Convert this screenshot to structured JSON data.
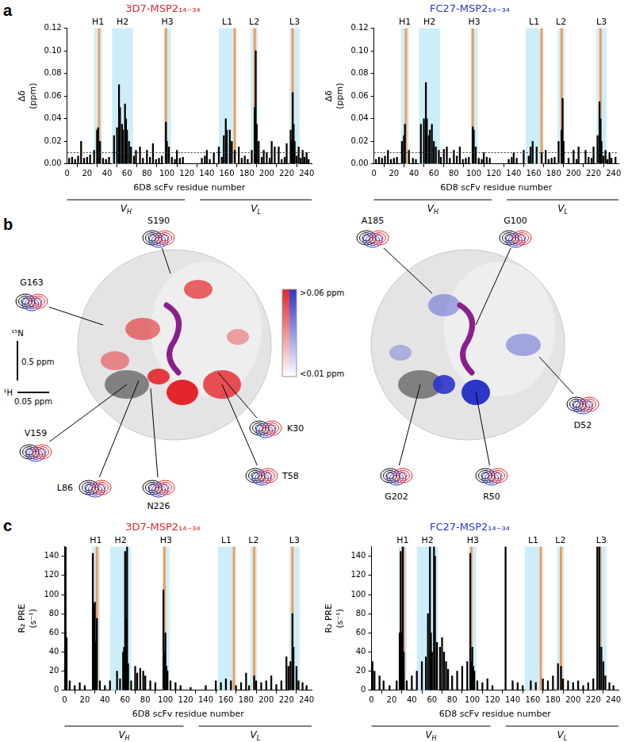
{
  "panel_labels": [
    "a",
    "b",
    "c"
  ],
  "chart_data": [
    {
      "type": "bar",
      "title": "3D7-MSP2₁₄₋₃₄",
      "title_color": "#e3262b",
      "color": "#000000",
      "x_label": "6D8 scFv residue number",
      "y_label": [
        "Δδ",
        "(ppm)"
      ],
      "x": [
        14,
        27,
        30,
        31,
        33,
        47,
        50,
        52,
        53,
        55,
        56,
        58,
        59,
        60,
        62,
        64,
        69,
        73,
        80,
        86,
        99,
        100,
        102,
        110,
        140,
        147,
        152,
        157,
        159,
        160,
        163,
        165,
        168,
        172,
        185,
        188,
        189,
        190,
        192,
        197,
        200,
        205,
        208,
        212,
        220,
        224,
        225,
        226,
        227,
        228,
        232,
        236,
        240,
        2,
        5,
        8,
        11,
        17,
        20,
        23,
        36,
        39,
        42,
        67,
        76,
        83,
        89,
        92,
        95,
        105,
        108,
        113,
        116,
        135,
        138,
        143,
        155,
        175,
        178,
        181,
        195,
        203,
        215,
        218,
        230,
        234,
        238,
        242
      ],
      "values": [
        0.02,
        0.012,
        0.03,
        0.032,
        0.02,
        0.025,
        0.032,
        0.07,
        0.05,
        0.035,
        0.03,
        0.053,
        0.04,
        0.03,
        0.02,
        0.015,
        0.012,
        0.015,
        0.012,
        0.018,
        0.037,
        0.02,
        0.015,
        0.012,
        0.012,
        0.01,
        0.015,
        0.025,
        0.04,
        0.03,
        0.03,
        0.02,
        0.012,
        0.015,
        0.012,
        0.05,
        0.1,
        0.035,
        0.02,
        0.012,
        0.01,
        0.02,
        0.015,
        0.015,
        0.018,
        0.03,
        0.02,
        0.063,
        0.035,
        0.02,
        0.015,
        0.012,
        0.01,
        0.005,
        0.006,
        0.004,
        0.007,
        0.005,
        0.006,
        0.008,
        0.005,
        0.004,
        0.006,
        0.007,
        0.005,
        0.006,
        0.004,
        0.005,
        0.007,
        0.006,
        0.004,
        0.005,
        0.006,
        0.005,
        0.007,
        0.004,
        0.006,
        0.005,
        0.007,
        0.004,
        0.006,
        0.005,
        0.004,
        0.006,
        0.007,
        0.005,
        0.006,
        0.004
      ],
      "xlim": [
        0,
        245
      ],
      "xticks": [
        0,
        20,
        40,
        60,
        80,
        100,
        120,
        140,
        160,
        180,
        200,
        220,
        240
      ],
      "ylim": [
        0,
        0.12
      ],
      "yticks": [
        {
          "value": 0,
          "label": "0.00"
        },
        {
          "value": 0.02,
          "label": "0.02"
        },
        {
          "value": 0.04,
          "label": "0.04"
        },
        {
          "value": 0.06,
          "label": "0.06"
        },
        {
          "value": 0.08,
          "label": "0.08"
        },
        {
          "value": 0.1,
          "label": "0.10"
        },
        {
          "value": 0.12,
          "label": "0.12"
        }
      ],
      "grid": false,
      "threshold": 0.01,
      "cdr_regions": [
        {
          "label": "H1",
          "start": 27,
          "end": 35
        },
        {
          "label": "H2",
          "start": 45,
          "end": 66
        },
        {
          "label": "H3",
          "start": 97,
          "end": 104
        },
        {
          "label": "L1",
          "start": 152,
          "end": 169
        },
        {
          "label": "L2",
          "start": 184,
          "end": 191
        },
        {
          "label": "L3",
          "start": 223,
          "end": 233
        }
      ],
      "highlight_residues": [
        32,
        99,
        168,
        188,
        226
      ],
      "domains": [
        {
          "label": "VH",
          "start": 0,
          "end": 118
        },
        {
          "label": "VL",
          "start": 133,
          "end": 245
        }
      ]
    },
    {
      "type": "bar",
      "title": "FC27-MSP2₁₄₋₃₄",
      "title_color": "#2b35c8",
      "color": "#000000",
      "x_label": "6D8 scFv residue number",
      "y_label": [
        "Δδ",
        "(ppm)"
      ],
      "x": [
        14,
        28,
        30,
        31,
        35,
        47,
        50,
        52,
        53,
        55,
        56,
        58,
        60,
        62,
        65,
        70,
        73,
        80,
        86,
        99,
        100,
        102,
        110,
        140,
        150,
        157,
        159,
        163,
        168,
        172,
        185,
        188,
        189,
        190,
        200,
        205,
        212,
        220,
        224,
        226,
        227,
        228,
        232,
        236,
        2,
        5,
        8,
        11,
        17,
        20,
        23,
        39,
        42,
        67,
        76,
        83,
        89,
        92,
        95,
        105,
        108,
        113,
        116,
        135,
        138,
        143,
        155,
        175,
        178,
        181,
        195,
        203,
        215,
        218,
        230,
        234,
        238,
        242
      ],
      "values": [
        0.012,
        0.02,
        0.025,
        0.035,
        0.012,
        0.035,
        0.04,
        0.072,
        0.04,
        0.025,
        0.03,
        0.035,
        0.02,
        0.015,
        0.012,
        0.013,
        0.015,
        0.012,
        0.015,
        0.033,
        0.03,
        0.015,
        0.01,
        0.01,
        0.012,
        0.015,
        0.02,
        0.015,
        0.01,
        0.012,
        0.02,
        0.03,
        0.058,
        0.02,
        0.012,
        0.015,
        0.012,
        0.015,
        0.025,
        0.055,
        0.04,
        0.02,
        0.012,
        0.01,
        0.004,
        0.006,
        0.005,
        0.007,
        0.004,
        0.005,
        0.006,
        0.005,
        0.004,
        0.006,
        0.005,
        0.007,
        0.004,
        0.005,
        0.006,
        0.005,
        0.004,
        0.006,
        0.005,
        0.004,
        0.006,
        0.005,
        0.007,
        0.004,
        0.005,
        0.006,
        0.005,
        0.004,
        0.006,
        0.005,
        0.007,
        0.004,
        0.005,
        0.006
      ],
      "xlim": [
        0,
        245
      ],
      "xticks": [
        0,
        20,
        40,
        60,
        80,
        100,
        120,
        140,
        160,
        180,
        200,
        220,
        240
      ],
      "ylim": [
        0,
        0.12
      ],
      "yticks": [
        {
          "value": 0,
          "label": "0.00"
        },
        {
          "value": 0.02,
          "label": "0.02"
        },
        {
          "value": 0.04,
          "label": "0.04"
        },
        {
          "value": 0.06,
          "label": "0.06"
        },
        {
          "value": 0.08,
          "label": "0.08"
        },
        {
          "value": 0.1,
          "label": "0.10"
        },
        {
          "value": 0.12,
          "label": "0.12"
        }
      ],
      "grid": false,
      "threshold": 0.01,
      "cdr_regions": [
        {
          "label": "H1",
          "start": 27,
          "end": 35
        },
        {
          "label": "H2",
          "start": 45,
          "end": 66
        },
        {
          "label": "H3",
          "start": 97,
          "end": 104
        },
        {
          "label": "L1",
          "start": 152,
          "end": 169
        },
        {
          "label": "L2",
          "start": 184,
          "end": 191
        },
        {
          "label": "L3",
          "start": 223,
          "end": 233
        }
      ],
      "highlight_residues": [
        32,
        99,
        168,
        188,
        227
      ],
      "domains": [
        {
          "label": "VH",
          "start": 0,
          "end": 118
        },
        {
          "label": "VL",
          "start": 133,
          "end": 245
        }
      ]
    },
    {
      "type": "bar",
      "title": "3D7-MSP2₁₄₋₃₄",
      "title_color": "#e3262b",
      "color": "#000000",
      "x_label": "6D8 scFv residue number",
      "y_label": [
        "R₂ PRE",
        "(s⁻¹)"
      ],
      "x": [
        1,
        2,
        5,
        10,
        15,
        20,
        28,
        29,
        30,
        31,
        32,
        35,
        40,
        45,
        52,
        55,
        58,
        59,
        60,
        61,
        62,
        63,
        66,
        70,
        72,
        75,
        78,
        80,
        85,
        90,
        98,
        99,
        100,
        101,
        102,
        105,
        110,
        115,
        125,
        140,
        150,
        155,
        160,
        165,
        170,
        175,
        180,
        183,
        188,
        190,
        195,
        200,
        205,
        210,
        215,
        220,
        222,
        224,
        226,
        227,
        230,
        232,
        236,
        240
      ],
      "values": [
        150,
        55,
        10,
        5,
        8,
        5,
        143,
        90,
        92,
        50,
        75,
        10,
        5,
        10,
        20,
        12,
        40,
        45,
        145,
        75,
        150,
        28,
        10,
        25,
        18,
        23,
        20,
        15,
        10,
        8,
        105,
        40,
        60,
        25,
        20,
        10,
        8,
        5,
        3,
        5,
        10,
        8,
        12,
        10,
        5,
        8,
        18,
        5,
        15,
        10,
        8,
        10,
        15,
        6,
        10,
        35,
        25,
        30,
        80,
        45,
        25,
        10,
        8,
        5
      ],
      "xlim": [
        0,
        245
      ],
      "xticks": [
        0,
        20,
        40,
        60,
        80,
        100,
        120,
        140,
        160,
        180,
        200,
        220,
        240
      ],
      "ylim": [
        0,
        150
      ],
      "yticks": [
        0,
        20,
        40,
        60,
        80,
        100,
        120,
        140
      ],
      "grid": false,
      "cdr_regions": [
        {
          "label": "H1",
          "start": 27,
          "end": 35
        },
        {
          "label": "H2",
          "start": 45,
          "end": 66
        },
        {
          "label": "H3",
          "start": 97,
          "end": 104
        },
        {
          "label": "L1",
          "start": 152,
          "end": 169
        },
        {
          "label": "L2",
          "start": 184,
          "end": 191
        },
        {
          "label": "L3",
          "start": 223,
          "end": 233
        }
      ],
      "highlight_residues": [
        32,
        99,
        168,
        188,
        226
      ],
      "domains": [
        {
          "label": "VH",
          "start": 0,
          "end": 118
        },
        {
          "label": "VL",
          "start": 133,
          "end": 245
        }
      ]
    },
    {
      "type": "bar",
      "title": "FC27-MSP2₁₄₋₃₄",
      "title_color": "#2b35c8",
      "color": "#000000",
      "x_label": "6D8 scFv residue number",
      "y_label": [
        "R₂ PRE",
        "(s⁻¹)"
      ],
      "x": [
        1,
        3,
        8,
        12,
        18,
        25,
        28,
        29,
        30,
        31,
        32,
        35,
        40,
        45,
        50,
        54,
        56,
        58,
        59,
        60,
        62,
        63,
        65,
        68,
        70,
        72,
        74,
        76,
        80,
        85,
        90,
        95,
        98,
        99,
        100,
        101,
        102,
        105,
        110,
        115,
        120,
        133,
        140,
        145,
        150,
        158,
        163,
        170,
        175,
        180,
        185,
        188,
        190,
        195,
        200,
        205,
        210,
        215,
        220,
        224,
        226,
        228,
        230,
        232,
        236,
        240
      ],
      "values": [
        30,
        20,
        15,
        10,
        5,
        10,
        60,
        145,
        60,
        150,
        40,
        10,
        15,
        20,
        30,
        35,
        80,
        150,
        60,
        40,
        150,
        140,
        50,
        45,
        55,
        40,
        30,
        22,
        15,
        20,
        25,
        30,
        143,
        30,
        45,
        25,
        20,
        10,
        8,
        12,
        5,
        150,
        10,
        8,
        5,
        10,
        8,
        12,
        10,
        15,
        28,
        25,
        12,
        10,
        8,
        10,
        5,
        8,
        12,
        150,
        150,
        45,
        30,
        15,
        8,
        5
      ],
      "xlim": [
        0,
        245
      ],
      "xticks": [
        0,
        20,
        40,
        60,
        80,
        100,
        120,
        140,
        160,
        180,
        200,
        220,
        240
      ],
      "ylim": [
        0,
        150
      ],
      "yticks": [
        0,
        20,
        40,
        60,
        80,
        100,
        120,
        140
      ],
      "grid": false,
      "cdr_regions": [
        {
          "label": "H1",
          "start": 27,
          "end": 35
        },
        {
          "label": "H2",
          "start": 45,
          "end": 66
        },
        {
          "label": "H3",
          "start": 97,
          "end": 104
        },
        {
          "label": "L1",
          "start": 152,
          "end": 169
        },
        {
          "label": "L2",
          "start": 184,
          "end": 191
        },
        {
          "label": "L3",
          "start": 223,
          "end": 233
        }
      ],
      "highlight_residues": [
        32,
        99,
        168,
        188,
        227
      ],
      "domains": [
        {
          "label": "VH",
          "start": 0,
          "end": 118
        },
        {
          "label": "VL",
          "start": 133,
          "end": 245
        }
      ]
    }
  ],
  "panel_b": {
    "left_labels": [
      "S190",
      "G163",
      "V159",
      "N226",
      "L86",
      "T58",
      "K30"
    ],
    "right_labels": [
      "A185",
      "G100",
      "D52",
      "R50",
      "G202"
    ],
    "colorbar": {
      "max_label": ">0.06 ppm",
      "min_label": "<0.01 ppm",
      "colors": [
        "#e3262b",
        "#2b35c8"
      ]
    },
    "scale": {
      "n_label": "¹⁵N",
      "n_value": "0.5 ppm",
      "h_label": "¹H",
      "h_value": "0.05 ppm"
    }
  }
}
